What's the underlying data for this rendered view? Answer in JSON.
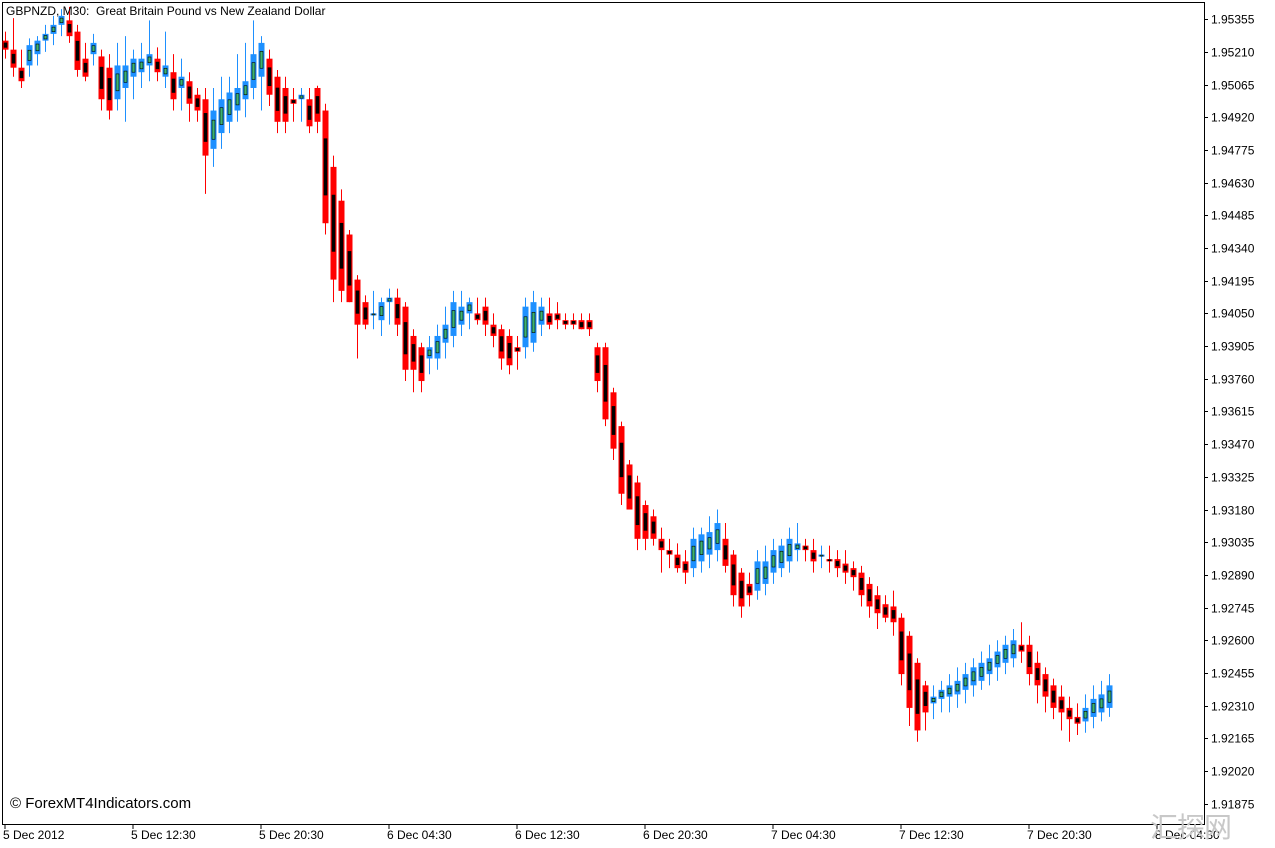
{
  "window": {
    "title": "GBPNZD, M30:  Great Britain Pound vs New Zealand Dollar",
    "copyright": "© ForexMT4Indicators.com",
    "watermark": "汇探网"
  },
  "chart_data": {
    "type": "candlestick",
    "symbol": "GBPNZD",
    "timeframe": "M30",
    "title": "Great Britain Pound vs New Zealand Dollar",
    "ylim": [
      1.91785,
      1.95427
    ],
    "y_ticks": [
      "1.95355",
      "1.95210",
      "1.95065",
      "1.94920",
      "1.94775",
      "1.94630",
      "1.94485",
      "1.94340",
      "1.94195",
      "1.94050",
      "1.93905",
      "1.93760",
      "1.93615",
      "1.93470",
      "1.93325",
      "1.93180",
      "1.93035",
      "1.92890",
      "1.92745",
      "1.92600",
      "1.92455",
      "1.92310",
      "1.92165",
      "1.92020",
      "1.91875"
    ],
    "x_ticks": [
      {
        "label": "5 Dec 2012",
        "bar": 0
      },
      {
        "label": "5 Dec 12:30",
        "bar": 16
      },
      {
        "label": "5 Dec 20:30",
        "bar": 32
      },
      {
        "label": "6 Dec 04:30",
        "bar": 48
      },
      {
        "label": "6 Dec 12:30",
        "bar": 64
      },
      {
        "label": "6 Dec 20:30",
        "bar": 80
      },
      {
        "label": "7 Dec 04:30",
        "bar": 96
      },
      {
        "label": "7 Dec 12:30",
        "bar": 112
      },
      {
        "label": "7 Dec 20:30",
        "bar": 128
      },
      {
        "label": "8 Dec 04:30",
        "bar": 144
      }
    ],
    "colors": {
      "heikin_bull": "#1e90ff",
      "heikin_bear": "#ff0000",
      "candle_bull": "#3cb371",
      "candle_bear": "#000000",
      "grid": false
    },
    "heikin_ashi": [
      {
        "o": 1.9526,
        "h": 1.953,
        "l": 1.9518,
        "c": 1.9522,
        "d": "bear"
      },
      {
        "o": 1.9522,
        "h": 1.9536,
        "l": 1.951,
        "c": 1.9514,
        "d": "bear"
      },
      {
        "o": 1.9514,
        "h": 1.9522,
        "l": 1.9505,
        "c": 1.9508,
        "d": "bear"
      },
      {
        "o": 1.9515,
        "h": 1.9527,
        "l": 1.951,
        "c": 1.9524,
        "d": "bull"
      },
      {
        "o": 1.952,
        "h": 1.9528,
        "l": 1.9515,
        "c": 1.9526,
        "d": "bull"
      },
      {
        "o": 1.9526,
        "h": 1.9533,
        "l": 1.9521,
        "c": 1.9529,
        "d": "bull"
      },
      {
        "o": 1.9529,
        "h": 1.9537,
        "l": 1.9524,
        "c": 1.9533,
        "d": "bull"
      },
      {
        "o": 1.9533,
        "h": 1.954,
        "l": 1.9528,
        "c": 1.9537,
        "d": "bull"
      },
      {
        "o": 1.9535,
        "h": 1.9541,
        "l": 1.9525,
        "c": 1.9528,
        "d": "bear"
      },
      {
        "o": 1.953,
        "h": 1.9533,
        "l": 1.951,
        "c": 1.9513,
        "d": "bear"
      },
      {
        "o": 1.9518,
        "h": 1.9525,
        "l": 1.9508,
        "c": 1.951,
        "d": "bear"
      },
      {
        "o": 1.952,
        "h": 1.9529,
        "l": 1.9515,
        "c": 1.9525,
        "d": "bull"
      },
      {
        "o": 1.9519,
        "h": 1.9522,
        "l": 1.9495,
        "c": 1.95,
        "d": "bear"
      },
      {
        "o": 1.9514,
        "h": 1.952,
        "l": 1.9491,
        "c": 1.9495,
        "d": "bear"
      },
      {
        "o": 1.95,
        "h": 1.9525,
        "l": 1.9495,
        "c": 1.9515,
        "d": "bull"
      },
      {
        "o": 1.9505,
        "h": 1.9528,
        "l": 1.949,
        "c": 1.9515,
        "d": "bull"
      },
      {
        "o": 1.951,
        "h": 1.9522,
        "l": 1.95,
        "c": 1.9518,
        "d": "bull"
      },
      {
        "o": 1.9512,
        "h": 1.9525,
        "l": 1.9505,
        "c": 1.9518,
        "d": "bull"
      },
      {
        "o": 1.9515,
        "h": 1.9535,
        "l": 1.9508,
        "c": 1.952,
        "d": "bull"
      },
      {
        "o": 1.9518,
        "h": 1.9523,
        "l": 1.9508,
        "c": 1.9512,
        "d": "bear"
      },
      {
        "o": 1.951,
        "h": 1.953,
        "l": 1.9505,
        "c": 1.9515,
        "d": "bull"
      },
      {
        "o": 1.9512,
        "h": 1.952,
        "l": 1.9495,
        "c": 1.95,
        "d": "bear"
      },
      {
        "o": 1.9505,
        "h": 1.9518,
        "l": 1.9495,
        "c": 1.951,
        "d": "bull"
      },
      {
        "o": 1.9508,
        "h": 1.9512,
        "l": 1.949,
        "c": 1.9498,
        "d": "bear"
      },
      {
        "o": 1.9502,
        "h": 1.9505,
        "l": 1.949,
        "c": 1.9495,
        "d": "bear"
      },
      {
        "o": 1.95,
        "h": 1.9505,
        "l": 1.9458,
        "c": 1.9475,
        "d": "bear"
      },
      {
        "o": 1.9478,
        "h": 1.9505,
        "l": 1.947,
        "c": 1.9495,
        "d": "bull"
      },
      {
        "o": 1.9485,
        "h": 1.951,
        "l": 1.9478,
        "c": 1.95,
        "d": "bull"
      },
      {
        "o": 1.949,
        "h": 1.951,
        "l": 1.9485,
        "c": 1.9503,
        "d": "bull"
      },
      {
        "o": 1.9495,
        "h": 1.952,
        "l": 1.949,
        "c": 1.9505,
        "d": "bull"
      },
      {
        "o": 1.95,
        "h": 1.9525,
        "l": 1.9492,
        "c": 1.9508,
        "d": "bull"
      },
      {
        "o": 1.9505,
        "h": 1.9535,
        "l": 1.95,
        "c": 1.952,
        "d": "bull"
      },
      {
        "o": 1.951,
        "h": 1.9528,
        "l": 1.9495,
        "c": 1.9525,
        "d": "bull"
      },
      {
        "o": 1.9518,
        "h": 1.9522,
        "l": 1.9497,
        "c": 1.9502,
        "d": "bear"
      },
      {
        "o": 1.951,
        "h": 1.9513,
        "l": 1.9485,
        "c": 1.949,
        "d": "bear"
      },
      {
        "o": 1.9505,
        "h": 1.951,
        "l": 1.9485,
        "c": 1.949,
        "d": "bear"
      },
      {
        "o": 1.95,
        "h": 1.9505,
        "l": 1.949,
        "c": 1.9498,
        "d": "bear"
      },
      {
        "o": 1.95,
        "h": 1.9505,
        "l": 1.949,
        "c": 1.9502,
        "d": "bull"
      },
      {
        "o": 1.95,
        "h": 1.9505,
        "l": 1.9485,
        "c": 1.9488,
        "d": "bear"
      },
      {
        "o": 1.9505,
        "h": 1.9506,
        "l": 1.9485,
        "c": 1.949,
        "d": "bear"
      },
      {
        "o": 1.9495,
        "h": 1.9498,
        "l": 1.944,
        "c": 1.9445,
        "d": "bear"
      },
      {
        "o": 1.947,
        "h": 1.9475,
        "l": 1.941,
        "c": 1.942,
        "d": "bear"
      },
      {
        "o": 1.9455,
        "h": 1.946,
        "l": 1.941,
        "c": 1.9415,
        "d": "bear"
      },
      {
        "o": 1.944,
        "h": 1.9442,
        "l": 1.941,
        "c": 1.941,
        "d": "bear"
      },
      {
        "o": 1.942,
        "h": 1.9422,
        "l": 1.9385,
        "c": 1.94,
        "d": "bear"
      },
      {
        "o": 1.941,
        "h": 1.9413,
        "l": 1.9398,
        "c": 1.94,
        "d": "bear"
      },
      {
        "o": 1.9405,
        "h": 1.9415,
        "l": 1.9398,
        "c": 1.9405,
        "d": "bull"
      },
      {
        "o": 1.9402,
        "h": 1.9412,
        "l": 1.9395,
        "c": 1.941,
        "d": "bull"
      },
      {
        "o": 1.941,
        "h": 1.9416,
        "l": 1.94,
        "c": 1.9412,
        "d": "bull"
      },
      {
        "o": 1.9412,
        "h": 1.9416,
        "l": 1.9395,
        "c": 1.94,
        "d": "bear"
      },
      {
        "o": 1.9408,
        "h": 1.941,
        "l": 1.9375,
        "c": 1.938,
        "d": "bear"
      },
      {
        "o": 1.9395,
        "h": 1.9398,
        "l": 1.937,
        "c": 1.938,
        "d": "bear"
      },
      {
        "o": 1.939,
        "h": 1.9392,
        "l": 1.937,
        "c": 1.9375,
        "d": "bear"
      },
      {
        "o": 1.9385,
        "h": 1.9395,
        "l": 1.9378,
        "c": 1.939,
        "d": "bull"
      },
      {
        "o": 1.9385,
        "h": 1.94,
        "l": 1.938,
        "c": 1.9395,
        "d": "bull"
      },
      {
        "o": 1.9392,
        "h": 1.9408,
        "l": 1.9385,
        "c": 1.94,
        "d": "bull"
      },
      {
        "o": 1.9395,
        "h": 1.9415,
        "l": 1.939,
        "c": 1.941,
        "d": "bull"
      },
      {
        "o": 1.94,
        "h": 1.9415,
        "l": 1.9395,
        "c": 1.9408,
        "d": "bull"
      },
      {
        "o": 1.9405,
        "h": 1.9412,
        "l": 1.9398,
        "c": 1.941,
        "d": "bull"
      },
      {
        "o": 1.9405,
        "h": 1.9412,
        "l": 1.94,
        "c": 1.9402,
        "d": "bear"
      },
      {
        "o": 1.9408,
        "h": 1.9412,
        "l": 1.9395,
        "c": 1.94,
        "d": "bear"
      },
      {
        "o": 1.94,
        "h": 1.9405,
        "l": 1.939,
        "c": 1.9395,
        "d": "bear"
      },
      {
        "o": 1.9398,
        "h": 1.94,
        "l": 1.938,
        "c": 1.9385,
        "d": "bear"
      },
      {
        "o": 1.9395,
        "h": 1.9398,
        "l": 1.9378,
        "c": 1.9382,
        "d": "bear"
      },
      {
        "o": 1.939,
        "h": 1.9395,
        "l": 1.938,
        "c": 1.9388,
        "d": "bear"
      },
      {
        "o": 1.939,
        "h": 1.9412,
        "l": 1.9385,
        "c": 1.9408,
        "d": "bull"
      },
      {
        "o": 1.9392,
        "h": 1.9415,
        "l": 1.9388,
        "c": 1.941,
        "d": "bull"
      },
      {
        "o": 1.94,
        "h": 1.9412,
        "l": 1.9395,
        "c": 1.9408,
        "d": "bull"
      },
      {
        "o": 1.9405,
        "h": 1.9412,
        "l": 1.9398,
        "c": 1.94,
        "d": "bear"
      },
      {
        "o": 1.9405,
        "h": 1.941,
        "l": 1.9398,
        "c": 1.9402,
        "d": "bear"
      },
      {
        "o": 1.9402,
        "h": 1.9405,
        "l": 1.9398,
        "c": 1.94,
        "d": "bear"
      },
      {
        "o": 1.9402,
        "h": 1.9405,
        "l": 1.9398,
        "c": 1.94,
        "d": "bear"
      },
      {
        "o": 1.9402,
        "h": 1.9405,
        "l": 1.9398,
        "c": 1.9398,
        "d": "bear"
      },
      {
        "o": 1.9402,
        "h": 1.9405,
        "l": 1.9395,
        "c": 1.9398,
        "d": "bear"
      },
      {
        "o": 1.939,
        "h": 1.9392,
        "l": 1.937,
        "c": 1.9375,
        "d": "bear"
      },
      {
        "o": 1.939,
        "h": 1.9392,
        "l": 1.9355,
        "c": 1.9358,
        "d": "bear"
      },
      {
        "o": 1.937,
        "h": 1.9372,
        "l": 1.934,
        "c": 1.9345,
        "d": "bear"
      },
      {
        "o": 1.9355,
        "h": 1.9357,
        "l": 1.932,
        "c": 1.9325,
        "d": "bear"
      },
      {
        "o": 1.9338,
        "h": 1.934,
        "l": 1.9318,
        "c": 1.9318,
        "d": "bear"
      },
      {
        "o": 1.933,
        "h": 1.9333,
        "l": 1.93,
        "c": 1.9305,
        "d": "bear"
      },
      {
        "o": 1.932,
        "h": 1.9322,
        "l": 1.93,
        "c": 1.9305,
        "d": "bear"
      },
      {
        "o": 1.9315,
        "h": 1.9318,
        "l": 1.9302,
        "c": 1.9305,
        "d": "bear"
      },
      {
        "o": 1.9305,
        "h": 1.931,
        "l": 1.929,
        "c": 1.93,
        "d": "bear"
      },
      {
        "o": 1.93,
        "h": 1.9305,
        "l": 1.9292,
        "c": 1.9298,
        "d": "bear"
      },
      {
        "o": 1.9298,
        "h": 1.9303,
        "l": 1.929,
        "c": 1.9292,
        "d": "bear"
      },
      {
        "o": 1.9295,
        "h": 1.93,
        "l": 1.9285,
        "c": 1.929,
        "d": "bear"
      },
      {
        "o": 1.9292,
        "h": 1.931,
        "l": 1.9288,
        "c": 1.9305,
        "d": "bull"
      },
      {
        "o": 1.9295,
        "h": 1.931,
        "l": 1.929,
        "c": 1.9307,
        "d": "bull"
      },
      {
        "o": 1.9298,
        "h": 1.9315,
        "l": 1.9292,
        "c": 1.9308,
        "d": "bull"
      },
      {
        "o": 1.93,
        "h": 1.9318,
        "l": 1.9295,
        "c": 1.9312,
        "d": "bull"
      },
      {
        "o": 1.9305,
        "h": 1.9312,
        "l": 1.929,
        "c": 1.9293,
        "d": "bear"
      },
      {
        "o": 1.9298,
        "h": 1.93,
        "l": 1.9275,
        "c": 1.928,
        "d": "bear"
      },
      {
        "o": 1.929,
        "h": 1.9292,
        "l": 1.927,
        "c": 1.9275,
        "d": "bear"
      },
      {
        "o": 1.9285,
        "h": 1.929,
        "l": 1.9275,
        "c": 1.928,
        "d": "bear"
      },
      {
        "o": 1.9282,
        "h": 1.93,
        "l": 1.9278,
        "c": 1.9295,
        "d": "bull"
      },
      {
        "o": 1.9285,
        "h": 1.9302,
        "l": 1.928,
        "c": 1.9295,
        "d": "bull"
      },
      {
        "o": 1.929,
        "h": 1.9305,
        "l": 1.9285,
        "c": 1.93,
        "d": "bull"
      },
      {
        "o": 1.9292,
        "h": 1.9305,
        "l": 1.9288,
        "c": 1.9302,
        "d": "bull"
      },
      {
        "o": 1.9295,
        "h": 1.931,
        "l": 1.929,
        "c": 1.9305,
        "d": "bull"
      },
      {
        "o": 1.93,
        "h": 1.9312,
        "l": 1.9295,
        "c": 1.9303,
        "d": "bull"
      },
      {
        "o": 1.9302,
        "h": 1.9305,
        "l": 1.9295,
        "c": 1.93,
        "d": "bear"
      },
      {
        "o": 1.93,
        "h": 1.9305,
        "l": 1.929,
        "c": 1.9295,
        "d": "bear"
      },
      {
        "o": 1.9298,
        "h": 1.9302,
        "l": 1.9292,
        "c": 1.9298,
        "d": "bull"
      },
      {
        "o": 1.9296,
        "h": 1.9302,
        "l": 1.929,
        "c": 1.9295,
        "d": "bear"
      },
      {
        "o": 1.9296,
        "h": 1.93,
        "l": 1.9288,
        "c": 1.9292,
        "d": "bear"
      },
      {
        "o": 1.9294,
        "h": 1.93,
        "l": 1.9285,
        "c": 1.929,
        "d": "bear"
      },
      {
        "o": 1.9292,
        "h": 1.9295,
        "l": 1.9282,
        "c": 1.9288,
        "d": "bear"
      },
      {
        "o": 1.929,
        "h": 1.9293,
        "l": 1.9275,
        "c": 1.928,
        "d": "bear"
      },
      {
        "o": 1.9285,
        "h": 1.9288,
        "l": 1.927,
        "c": 1.9275,
        "d": "bear"
      },
      {
        "o": 1.928,
        "h": 1.9284,
        "l": 1.9265,
        "c": 1.9272,
        "d": "bear"
      },
      {
        "o": 1.9276,
        "h": 1.928,
        "l": 1.9268,
        "c": 1.927,
        "d": "bear"
      },
      {
        "o": 1.9275,
        "h": 1.9282,
        "l": 1.9262,
        "c": 1.9268,
        "d": "bear"
      },
      {
        "o": 1.927,
        "h": 1.9272,
        "l": 1.924,
        "c": 1.9245,
        "d": "bear"
      },
      {
        "o": 1.9262,
        "h": 1.9264,
        "l": 1.9222,
        "c": 1.923,
        "d": "bear"
      },
      {
        "o": 1.925,
        "h": 1.9252,
        "l": 1.9215,
        "c": 1.922,
        "d": "bear"
      },
      {
        "o": 1.924,
        "h": 1.9242,
        "l": 1.922,
        "c": 1.9228,
        "d": "bear"
      },
      {
        "o": 1.9232,
        "h": 1.924,
        "l": 1.9225,
        "c": 1.9235,
        "d": "bull"
      },
      {
        "o": 1.9234,
        "h": 1.9242,
        "l": 1.9228,
        "c": 1.9238,
        "d": "bull"
      },
      {
        "o": 1.9235,
        "h": 1.9245,
        "l": 1.9228,
        "c": 1.924,
        "d": "bull"
      },
      {
        "o": 1.9236,
        "h": 1.9248,
        "l": 1.923,
        "c": 1.9242,
        "d": "bull"
      },
      {
        "o": 1.9238,
        "h": 1.925,
        "l": 1.9232,
        "c": 1.9245,
        "d": "bull"
      },
      {
        "o": 1.924,
        "h": 1.9252,
        "l": 1.9235,
        "c": 1.9248,
        "d": "bull"
      },
      {
        "o": 1.9242,
        "h": 1.9255,
        "l": 1.9238,
        "c": 1.925,
        "d": "bull"
      },
      {
        "o": 1.9245,
        "h": 1.9258,
        "l": 1.924,
        "c": 1.9252,
        "d": "bull"
      },
      {
        "o": 1.9248,
        "h": 1.926,
        "l": 1.9242,
        "c": 1.9255,
        "d": "bull"
      },
      {
        "o": 1.925,
        "h": 1.9262,
        "l": 1.9245,
        "c": 1.9258,
        "d": "bull"
      },
      {
        "o": 1.9252,
        "h": 1.9265,
        "l": 1.9248,
        "c": 1.926,
        "d": "bull"
      },
      {
        "o": 1.9258,
        "h": 1.9268,
        "l": 1.925,
        "c": 1.9255,
        "d": "bear"
      },
      {
        "o": 1.9258,
        "h": 1.9262,
        "l": 1.924,
        "c": 1.9245,
        "d": "bear"
      },
      {
        "o": 1.925,
        "h": 1.9255,
        "l": 1.9232,
        "c": 1.924,
        "d": "bear"
      },
      {
        "o": 1.9245,
        "h": 1.9248,
        "l": 1.9228,
        "c": 1.9235,
        "d": "bear"
      },
      {
        "o": 1.924,
        "h": 1.9243,
        "l": 1.9225,
        "c": 1.923,
        "d": "bear"
      },
      {
        "o": 1.9235,
        "h": 1.924,
        "l": 1.922,
        "c": 1.9228,
        "d": "bear"
      },
      {
        "o": 1.923,
        "h": 1.9235,
        "l": 1.9215,
        "c": 1.9225,
        "d": "bear"
      },
      {
        "o": 1.9226,
        "h": 1.9232,
        "l": 1.9218,
        "c": 1.9223,
        "d": "bear"
      },
      {
        "o": 1.9224,
        "h": 1.9236,
        "l": 1.9219,
        "c": 1.923,
        "d": "bull"
      },
      {
        "o": 1.9226,
        "h": 1.924,
        "l": 1.9221,
        "c": 1.9234,
        "d": "bull"
      },
      {
        "o": 1.9228,
        "h": 1.9242,
        "l": 1.9224,
        "c": 1.9236,
        "d": "bull"
      },
      {
        "o": 1.923,
        "h": 1.9245,
        "l": 1.9226,
        "c": 1.924,
        "d": "bull"
      }
    ]
  }
}
